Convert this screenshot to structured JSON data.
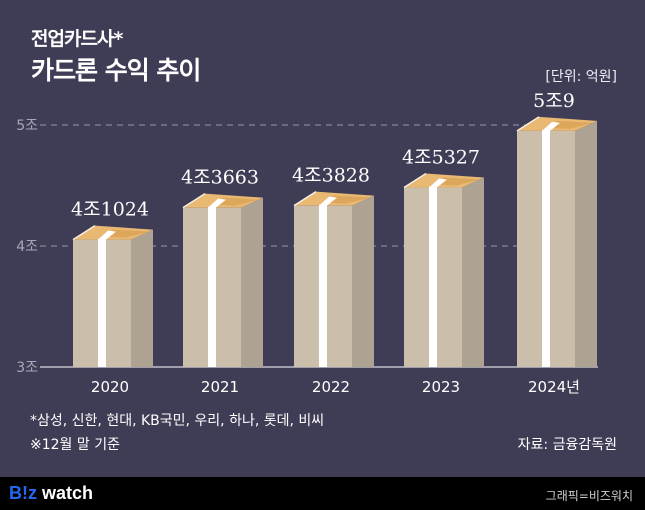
{
  "header": {
    "title_line1": "전업카드사*",
    "title_line2": "카드론 수익 추이",
    "unit": "[단위: 억원]"
  },
  "chart_data": {
    "type": "bar",
    "title": "전업카드사* 카드론 수익 추이",
    "xlabel": "",
    "ylabel": "",
    "unit": "억원",
    "categories": [
      "2020",
      "2021",
      "2022",
      "2023",
      "2024년"
    ],
    "values": [
      41024,
      43663,
      43828,
      45327,
      50009
    ],
    "data_labels": [
      "4조1024",
      "4조3663",
      "4조3828",
      "4조5327",
      "5조9"
    ],
    "ylim": [
      30000,
      50000
    ],
    "yticks": [
      {
        "value": 30000,
        "label": "3조"
      },
      {
        "value": 40000,
        "label": "4조"
      },
      {
        "value": 50000,
        "label": "5조"
      }
    ],
    "grid": "dashed horizontal at ticks",
    "bar_style": "stacked banknote bundles",
    "colors": {
      "front": "#cbbfab",
      "side": "#aea392",
      "band": "#ffffff",
      "top": "#e9b872",
      "top_dark": "#d49a4c",
      "grid": "#9a98ad",
      "axis": "#d9d7e2"
    }
  },
  "notes": {
    "companies": "*삼성, 신한, 현대, KB국민, 우리, 하나, 롯데, 비씨",
    "basis": "※12월 말 기준",
    "source": "자료: 금융감독원"
  },
  "footer": {
    "logo_part1": "B!z",
    "logo_part2": "watch",
    "credit": "그래픽=비즈워치"
  }
}
